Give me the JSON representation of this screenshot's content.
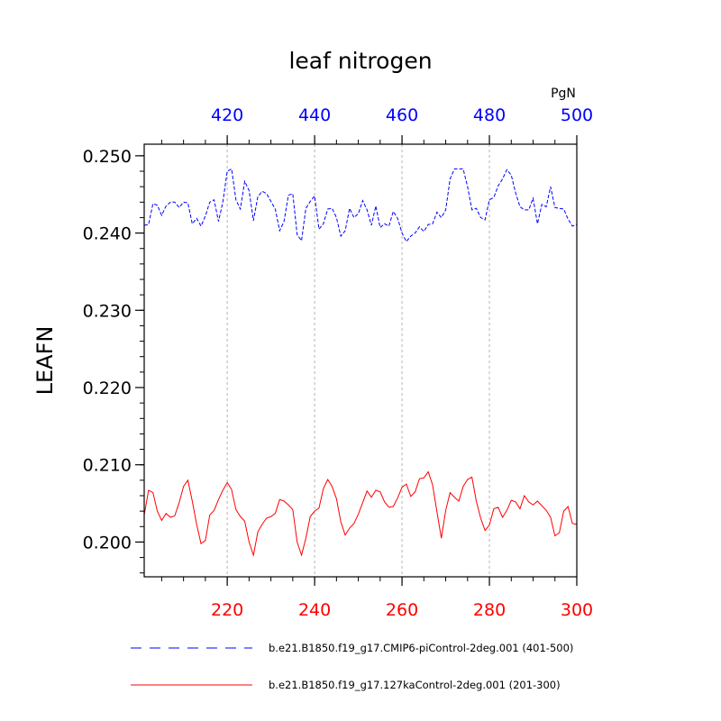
{
  "chart_data": {
    "type": "line",
    "title": "leaf nitrogen",
    "ylabel": "LEAFN",
    "units_label": "PgN",
    "ylim": [
      0.1955,
      0.2515
    ],
    "yticks": [
      "0.200",
      "0.210",
      "0.220",
      "0.230",
      "0.240",
      "0.250"
    ],
    "ytick_values": [
      0.2,
      0.21,
      0.22,
      0.23,
      0.24,
      0.25
    ],
    "grid": "vertical-dotted",
    "bottom_axis": {
      "range": [
        201,
        300
      ],
      "ticks": [
        220,
        240,
        260,
        280,
        300
      ],
      "tick_labels": [
        "220",
        "240",
        "260",
        "280",
        "300"
      ],
      "color": "#ff0000"
    },
    "top_axis": {
      "range": [
        401,
        500
      ],
      "ticks": [
        420,
        440,
        460,
        480,
        500
      ],
      "tick_labels": [
        "420",
        "440",
        "460",
        "480",
        "500"
      ],
      "color": "#0000ff"
    },
    "legend_position": "bottom",
    "series": [
      {
        "name": "b.e21.B1850.f19_g17.CMIP6-piControl-2deg.001 (401-500)",
        "axis": "top",
        "color": "#0000ff",
        "dash": "dashed",
        "x_start": 401,
        "values": [
          0.241,
          0.2411,
          0.2438,
          0.2436,
          0.2423,
          0.2435,
          0.244,
          0.244,
          0.2433,
          0.244,
          0.2439,
          0.2412,
          0.2419,
          0.2409,
          0.2422,
          0.244,
          0.2443,
          0.2415,
          0.244,
          0.248,
          0.2483,
          0.2443,
          0.2431,
          0.2467,
          0.2455,
          0.2416,
          0.2447,
          0.2454,
          0.2451,
          0.2441,
          0.2431,
          0.2403,
          0.2415,
          0.2449,
          0.2451,
          0.2398,
          0.239,
          0.2432,
          0.2441,
          0.2448,
          0.2405,
          0.2412,
          0.2431,
          0.2432,
          0.242,
          0.2396,
          0.2403,
          0.2432,
          0.242,
          0.2425,
          0.2442,
          0.243,
          0.241,
          0.2435,
          0.2407,
          0.2412,
          0.2409,
          0.2428,
          0.2419,
          0.24,
          0.2389,
          0.2396,
          0.24,
          0.2408,
          0.2402,
          0.2411,
          0.2412,
          0.2427,
          0.242,
          0.243,
          0.247,
          0.2483,
          0.2483,
          0.2483,
          0.246,
          0.243,
          0.2432,
          0.242,
          0.2417,
          0.2443,
          0.2446,
          0.2461,
          0.247,
          0.2482,
          0.2475,
          0.2452,
          0.2434,
          0.243,
          0.243,
          0.2445,
          0.2412,
          0.2437,
          0.2434,
          0.246,
          0.2433,
          0.2432,
          0.2431,
          0.2418,
          0.2409,
          0.2411
        ]
      },
      {
        "name": "b.e21.B1850.f19_g17.127kaControl-2deg.001 (201-300)",
        "axis": "bottom",
        "color": "#ff0000",
        "dash": "solid",
        "x_start": 201,
        "values": [
          0.2035,
          0.2067,
          0.2064,
          0.204,
          0.2028,
          0.2037,
          0.2032,
          0.2034,
          0.2051,
          0.2072,
          0.208,
          0.2053,
          0.2023,
          0.1998,
          0.2002,
          0.2035,
          0.2041,
          0.2055,
          0.2067,
          0.2077,
          0.2068,
          0.2042,
          0.2033,
          0.2027,
          0.2,
          0.1983,
          0.2013,
          0.2023,
          0.2031,
          0.2033,
          0.2037,
          0.2055,
          0.2053,
          0.2048,
          0.2042,
          0.2,
          0.1983,
          0.2005,
          0.2033,
          0.204,
          0.2044,
          0.2069,
          0.2081,
          0.2072,
          0.2056,
          0.2026,
          0.2009,
          0.2018,
          0.2024,
          0.2036,
          0.2051,
          0.2066,
          0.2058,
          0.2067,
          0.2065,
          0.2052,
          0.2045,
          0.2046,
          0.2057,
          0.2071,
          0.2075,
          0.2059,
          0.2065,
          0.2082,
          0.2083,
          0.2091,
          0.2074,
          0.2039,
          0.2005,
          0.2041,
          0.2064,
          0.2058,
          0.2053,
          0.2072,
          0.2081,
          0.2084,
          0.2053,
          0.2031,
          0.2015,
          0.2022,
          0.2043,
          0.2045,
          0.2032,
          0.2041,
          0.2054,
          0.2052,
          0.2043,
          0.206,
          0.2052,
          0.2048,
          0.2053,
          0.2047,
          0.2041,
          0.2032,
          0.2008,
          0.2012,
          0.204,
          0.2046,
          0.2024,
          0.2023
        ]
      }
    ]
  }
}
